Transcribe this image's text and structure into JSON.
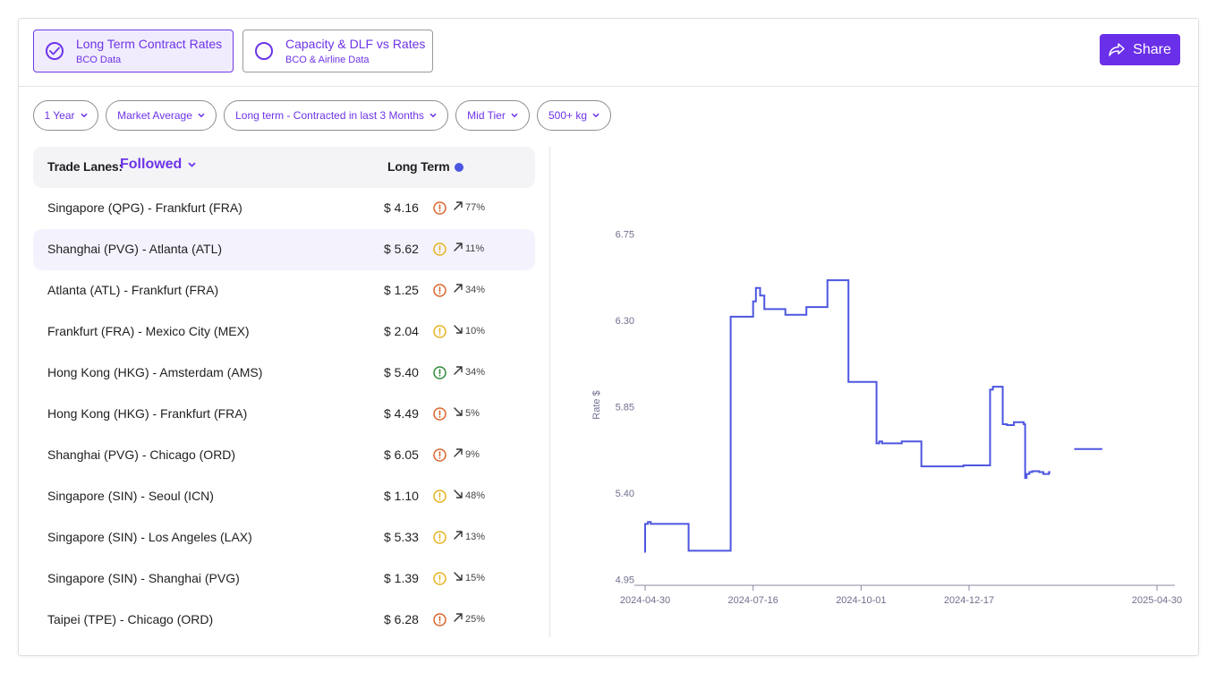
{
  "tabs": [
    {
      "title": "Long Term Contract Rates",
      "subtitle": "BCO Data",
      "active": true
    },
    {
      "title": "Capacity & DLF vs Rates",
      "subtitle": "BCO & Airline Data",
      "active": false
    }
  ],
  "share_label": "Share",
  "filters": [
    "1 Year",
    "Market Average",
    "Long term - Contracted in last 3 Months",
    "Mid Tier",
    "500+ kg"
  ],
  "table": {
    "header_label": "Trade Lanes:",
    "header_filter": "Followed",
    "header_col": "Long Term",
    "rows": [
      {
        "lane": "Singapore (QPG) - Frankfurt (FRA)",
        "rate": "$ 4.16",
        "status": "orange",
        "trend": "up",
        "pct": "77%"
      },
      {
        "lane": "Shanghai (PVG) - Atlanta (ATL)",
        "rate": "$ 5.62",
        "status": "yellow",
        "trend": "up",
        "pct": "11%"
      },
      {
        "lane": "Atlanta (ATL) - Frankfurt (FRA)",
        "rate": "$ 1.25",
        "status": "orange",
        "trend": "up",
        "pct": "34%"
      },
      {
        "lane": "Frankfurt (FRA) - Mexico City (MEX)",
        "rate": "$ 2.04",
        "status": "yellow",
        "trend": "down",
        "pct": "10%"
      },
      {
        "lane": "Hong Kong (HKG) - Amsterdam (AMS)",
        "rate": "$ 5.40",
        "status": "green",
        "trend": "up",
        "pct": "34%"
      },
      {
        "lane": "Hong Kong (HKG) - Frankfurt (FRA)",
        "rate": "$ 4.49",
        "status": "orange",
        "trend": "down",
        "pct": "5%"
      },
      {
        "lane": "Shanghai (PVG) - Chicago (ORD)",
        "rate": "$ 6.05",
        "status": "orange",
        "trend": "up",
        "pct": "9%"
      },
      {
        "lane": "Singapore (SIN) - Seoul (ICN)",
        "rate": "$ 1.10",
        "status": "yellow",
        "trend": "down",
        "pct": "48%"
      },
      {
        "lane": "Singapore (SIN) - Los Angeles (LAX)",
        "rate": "$ 5.33",
        "status": "yellow",
        "trend": "up",
        "pct": "13%"
      },
      {
        "lane": "Singapore (SIN) - Shanghai (PVG)",
        "rate": "$ 1.39",
        "status": "yellow",
        "trend": "down",
        "pct": "15%"
      },
      {
        "lane": "Taipei (TPE) - Chicago (ORD)",
        "rate": "$ 6.28",
        "status": "orange",
        "trend": "up",
        "pct": "25%"
      }
    ],
    "highlighted_row": 1
  },
  "colors": {
    "accent": "#6d34e8",
    "line": "#4d56e0",
    "status_orange": "#d9652b",
    "status_yellow": "#e6b31e",
    "status_green": "#2f8a3a"
  },
  "chart_data": {
    "type": "line",
    "step": true,
    "title": "",
    "xlabel": "",
    "ylabel": "Rate $",
    "x_ticks": [
      "2024-04-30",
      "2024-07-16",
      "2024-10-01",
      "2024-12-17",
      "2025-04-30"
    ],
    "y_ticks": [
      4.95,
      5.4,
      5.85,
      6.3,
      6.75
    ],
    "xlim": [
      "2024-04-30",
      "2025-04-30"
    ],
    "ylim": [
      4.92,
      6.8
    ],
    "series": [
      {
        "values": [
          [
            "2024-04-30",
            5.09
          ],
          [
            "2024-04-30",
            5.24
          ],
          [
            "2024-05-02",
            5.24
          ],
          [
            "2024-05-02",
            5.25
          ],
          [
            "2024-05-04",
            5.25
          ],
          [
            "2024-05-04",
            5.24
          ],
          [
            "2024-05-31",
            5.24
          ],
          [
            "2024-05-31",
            5.1
          ],
          [
            "2024-06-30",
            5.1
          ],
          [
            "2024-06-30",
            6.32
          ],
          [
            "2024-07-16",
            6.32
          ],
          [
            "2024-07-16",
            6.4
          ],
          [
            "2024-07-18",
            6.4
          ],
          [
            "2024-07-18",
            6.47
          ],
          [
            "2024-07-21",
            6.47
          ],
          [
            "2024-07-21",
            6.43
          ],
          [
            "2024-07-24",
            6.43
          ],
          [
            "2024-07-24",
            6.36
          ],
          [
            "2024-08-08",
            6.36
          ],
          [
            "2024-08-08",
            6.33
          ],
          [
            "2024-08-23",
            6.33
          ],
          [
            "2024-08-23",
            6.37
          ],
          [
            "2024-09-07",
            6.37
          ],
          [
            "2024-09-07",
            6.51
          ],
          [
            "2024-09-22",
            6.51
          ],
          [
            "2024-09-22",
            5.98
          ],
          [
            "2024-10-12",
            5.98
          ],
          [
            "2024-10-12",
            5.66
          ],
          [
            "2024-10-14",
            5.66
          ],
          [
            "2024-10-14",
            5.67
          ],
          [
            "2024-10-16",
            5.67
          ],
          [
            "2024-10-16",
            5.66
          ],
          [
            "2024-10-30",
            5.66
          ],
          [
            "2024-10-30",
            5.67
          ],
          [
            "2024-11-13",
            5.67
          ],
          [
            "2024-11-13",
            5.54
          ],
          [
            "2024-12-13",
            5.54
          ],
          [
            "2024-12-13",
            5.545
          ],
          [
            "2025-01-01",
            5.545
          ],
          [
            "2025-01-01",
            5.94
          ],
          [
            "2025-01-03",
            5.94
          ],
          [
            "2025-01-03",
            5.955
          ],
          [
            "2025-01-10",
            5.955
          ],
          [
            "2025-01-10",
            5.76
          ],
          [
            "2025-01-13",
            5.76
          ],
          [
            "2025-01-13",
            5.755
          ],
          [
            "2025-01-18",
            5.755
          ],
          [
            "2025-01-18",
            5.77
          ],
          [
            "2025-01-25",
            5.77
          ],
          [
            "2025-01-25",
            5.76
          ],
          [
            "2025-01-26",
            5.76
          ],
          [
            "2025-01-26",
            5.48
          ],
          [
            "2025-01-27",
            5.48
          ],
          [
            "2025-01-27",
            5.5
          ],
          [
            "2025-01-29",
            5.5
          ],
          [
            "2025-01-29",
            5.51
          ],
          [
            "2025-01-31",
            5.51
          ],
          [
            "2025-01-31",
            5.515
          ],
          [
            "2025-02-05",
            5.515
          ],
          [
            "2025-02-05",
            5.51
          ],
          [
            "2025-02-08",
            5.51
          ],
          [
            "2025-02-08",
            5.5
          ],
          [
            "2025-02-12",
            5.5
          ],
          [
            "2025-02-12",
            5.51
          ],
          [
            "2025-02-13",
            5.51
          ]
        ]
      },
      {
        "values": [
          [
            "2025-03-02",
            5.63
          ],
          [
            "2025-03-22",
            5.63
          ]
        ]
      }
    ]
  }
}
